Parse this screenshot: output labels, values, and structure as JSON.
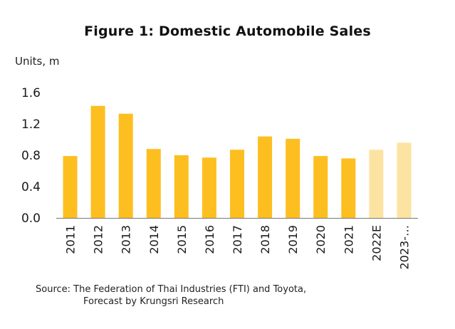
{
  "chart_data": {
    "type": "bar",
    "title": "Figure 1: Domestic Automobile Sales",
    "ylabel": "Units, m",
    "xlabel": "",
    "categories": [
      "2011",
      "2012",
      "2013",
      "2014",
      "2015",
      "2016",
      "2017",
      "2018",
      "2019",
      "2020",
      "2021",
      "2022E",
      "2023-…"
    ],
    "values": [
      0.79,
      1.43,
      1.33,
      0.88,
      0.8,
      0.77,
      0.87,
      1.04,
      1.01,
      0.79,
      0.76,
      0.87,
      0.96
    ],
    "forecast_categories": [
      "2022E",
      "2023-…"
    ],
    "ylim": [
      0.0,
      1.6
    ],
    "yticks": [
      "0.0",
      "0.4",
      "0.8",
      "1.2",
      "1.6"
    ],
    "grid": false,
    "legend": "none",
    "colors": {
      "actual": "#FDBE20",
      "forecast": "#FCE3A1",
      "axis": "#777777"
    }
  },
  "source": {
    "line1": "Source: The Federation of Thai Industries (FTI) and Toyota,",
    "line2": "Forecast by Krungsri Research"
  }
}
